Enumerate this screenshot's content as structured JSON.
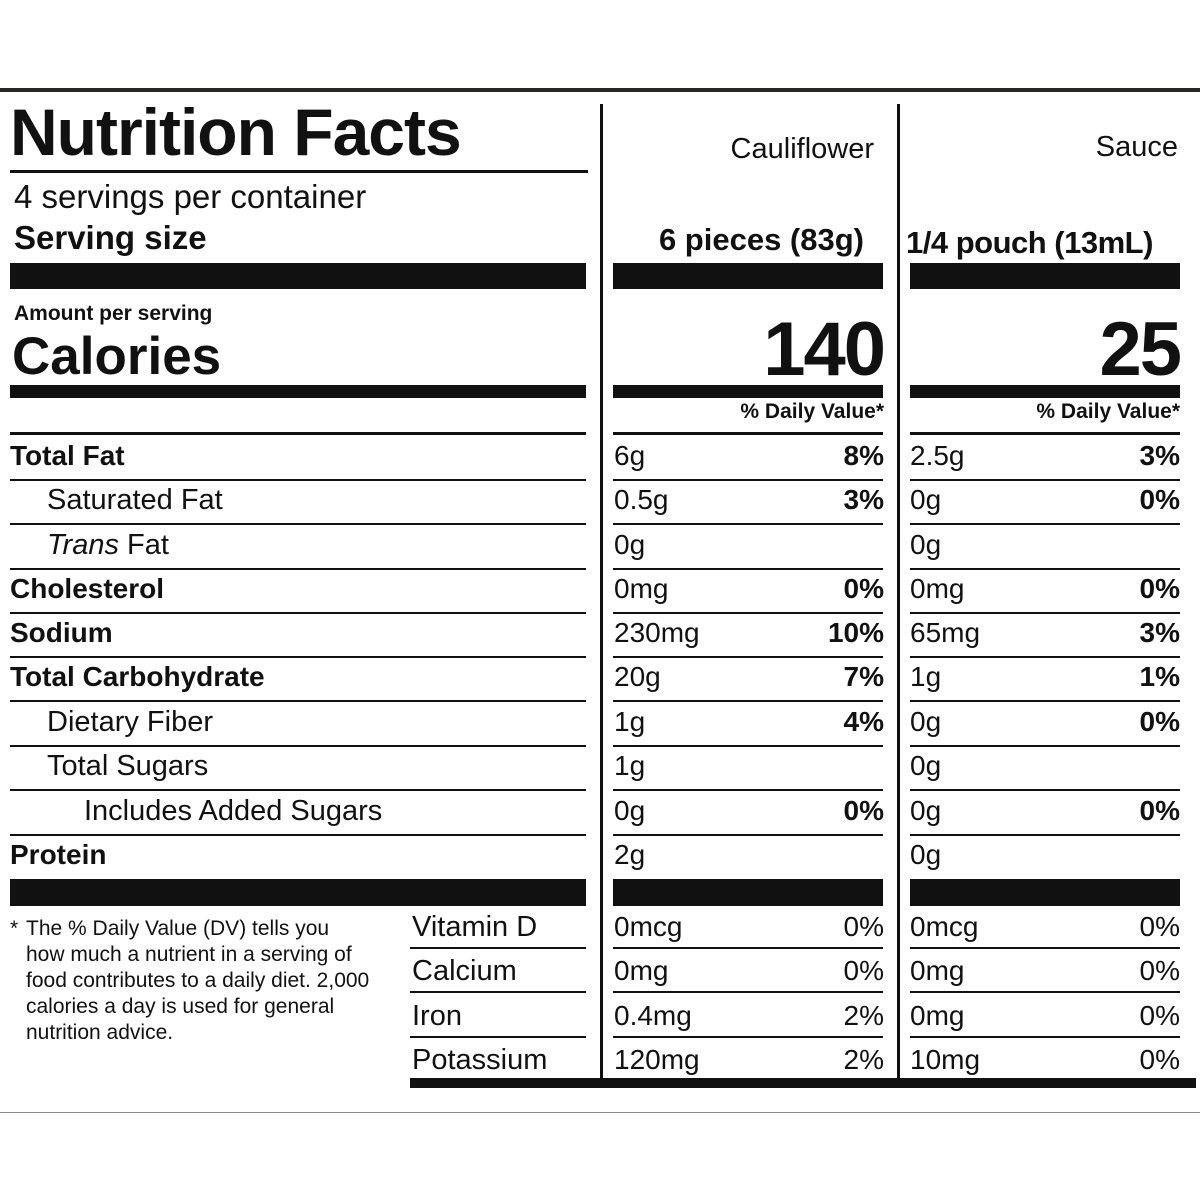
{
  "title": "Nutrition Facts",
  "servings_per_container": "4 servings per container",
  "serving_size_label": "Serving size",
  "amount_per_serving": "Amount per serving",
  "calories_label": "Calories",
  "columns": [
    {
      "name": "Cauliflower",
      "serving": "6 pieces (83g)",
      "calories": "140",
      "dv_header": "% Daily Value*"
    },
    {
      "name": "Sauce",
      "serving": "1/4 pouch (13mL)",
      "calories": "25",
      "dv_header": "% Daily Value*"
    }
  ],
  "nutrients": [
    {
      "label": "Total Fat",
      "values": [
        {
          "amount": "6g",
          "dv": "8%"
        },
        {
          "amount": "2.5g",
          "dv": "3%"
        }
      ]
    },
    {
      "label": "Saturated Fat",
      "values": [
        {
          "amount": "0.5g",
          "dv": "3%"
        },
        {
          "amount": "0g",
          "dv": "0%"
        }
      ]
    },
    {
      "label": "Trans",
      "label_suffix": " Fat",
      "values": [
        {
          "amount": "0g",
          "dv": ""
        },
        {
          "amount": "0g",
          "dv": ""
        }
      ]
    },
    {
      "label": "Cholesterol",
      "values": [
        {
          "amount": "0mg",
          "dv": "0%"
        },
        {
          "amount": "0mg",
          "dv": "0%"
        }
      ]
    },
    {
      "label": "Sodium",
      "values": [
        {
          "amount": "230mg",
          "dv": "10%"
        },
        {
          "amount": "65mg",
          "dv": "3%"
        }
      ]
    },
    {
      "label": "Total Carbohydrate",
      "values": [
        {
          "amount": "20g",
          "dv": "7%"
        },
        {
          "amount": "1g",
          "dv": "1%"
        }
      ]
    },
    {
      "label": "Dietary Fiber",
      "values": [
        {
          "amount": "1g",
          "dv": "4%"
        },
        {
          "amount": "0g",
          "dv": "0%"
        }
      ]
    },
    {
      "label": "Total Sugars",
      "values": [
        {
          "amount": "1g",
          "dv": ""
        },
        {
          "amount": "0g",
          "dv": ""
        }
      ]
    },
    {
      "label": "Includes Added Sugars",
      "values": [
        {
          "amount": "0g",
          "dv": "0%"
        },
        {
          "amount": "0g",
          "dv": "0%"
        }
      ]
    },
    {
      "label": "Protein",
      "values": [
        {
          "amount": "2g",
          "dv": ""
        },
        {
          "amount": "0g",
          "dv": ""
        }
      ]
    }
  ],
  "micros": [
    {
      "label": "Vitamin D",
      "values": [
        {
          "amount": "0mcg",
          "dv": "0%"
        },
        {
          "amount": "0mcg",
          "dv": "0%"
        }
      ]
    },
    {
      "label": "Calcium",
      "values": [
        {
          "amount": "0mg",
          "dv": "0%"
        },
        {
          "amount": "0mg",
          "dv": "0%"
        }
      ]
    },
    {
      "label": "Iron",
      "values": [
        {
          "amount": "0.4mg",
          "dv": "2%"
        },
        {
          "amount": "0mg",
          "dv": "0%"
        }
      ]
    },
    {
      "label": "Potassium",
      "values": [
        {
          "amount": "120mg",
          "dv": "2%"
        },
        {
          "amount": "10mg",
          "dv": "0%"
        }
      ]
    }
  ],
  "footnote_star": "*",
  "footnote": "The % Daily Value (DV) tells you how much a nutrient in a serving of food contributes to a daily diet. 2,000 calories a day is used for general nutrition advice."
}
